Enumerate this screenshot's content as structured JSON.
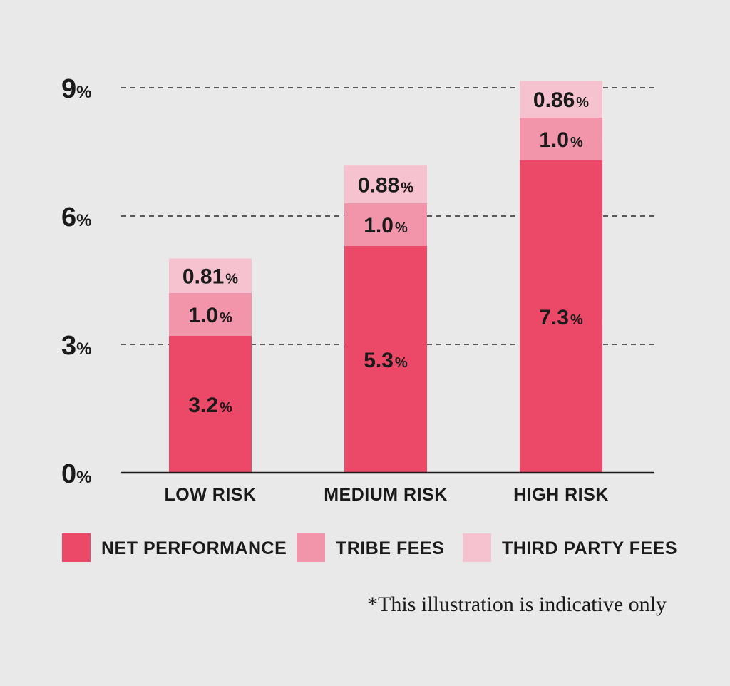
{
  "chart_data": {
    "type": "bar",
    "stacked": true,
    "categories": [
      "LOW RISK",
      "MEDIUM RISK",
      "HIGH RISK"
    ],
    "series": [
      {
        "name": "NET PERFORMANCE",
        "values": [
          3.2,
          5.3,
          7.3
        ],
        "color": "#ec4868"
      },
      {
        "name": "TRIBE FEES",
        "values": [
          1.0,
          1.0,
          1.0
        ],
        "color": "#f294aa"
      },
      {
        "name": "THIRD PARTY FEES",
        "values": [
          0.81,
          0.88,
          0.86
        ],
        "color": "#f6c2d0"
      }
    ],
    "segment_labels": [
      [
        "3.2",
        "1.0",
        "0.81"
      ],
      [
        "5.3",
        "1.0",
        "0.88"
      ],
      [
        "7.3",
        "1.0",
        "0.86"
      ]
    ],
    "y_ticks": [
      {
        "value": 0,
        "label": "0"
      },
      {
        "value": 3,
        "label": "3"
      },
      {
        "value": 6,
        "label": "6"
      },
      {
        "value": 9,
        "label": "9"
      }
    ],
    "tick_unit": "%",
    "ylim": [
      0,
      9
    ],
    "grid": "dashed horizontal",
    "legend_position": "bottom",
    "footnote": "*This illustration is indicative only"
  }
}
